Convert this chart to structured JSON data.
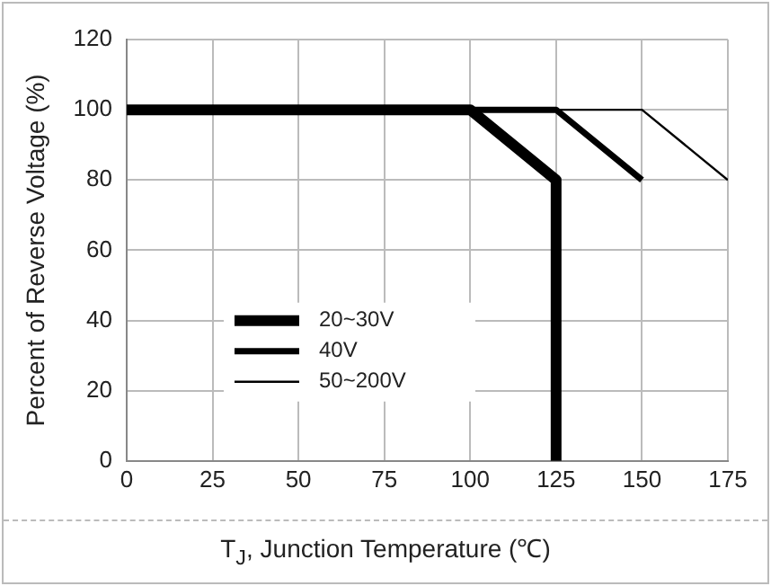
{
  "chart_data": {
    "type": "line",
    "xlabel": "T$_{J}$, Junction Temperature (℃)",
    "ylabel": "Percent of Reverse Voltage (%)",
    "xlim": [
      0,
      175
    ],
    "xticks": [
      0,
      25,
      50,
      75,
      100,
      125,
      150,
      175
    ],
    "ylim": [
      0,
      120
    ],
    "yticks": [
      0,
      20,
      40,
      60,
      80,
      100,
      120
    ],
    "grid": true,
    "legend": "bottom left",
    "marker": "none",
    "line_style": "solid",
    "series": [
      {
        "name": "20~30V",
        "color": "#000000",
        "x": [
          0,
          100,
          125,
          125
        ],
        "values": [
          100,
          100,
          80,
          0
        ]
      },
      {
        "name": "40V",
        "color": "#000000",
        "x": [
          0,
          125,
          150
        ],
        "values": [
          100,
          100,
          80
        ]
      },
      {
        "name": "50~200V",
        "color": "#000000",
        "x": [
          0,
          150,
          175
        ],
        "values": [
          100,
          100,
          80
        ]
      }
    ]
  }
}
